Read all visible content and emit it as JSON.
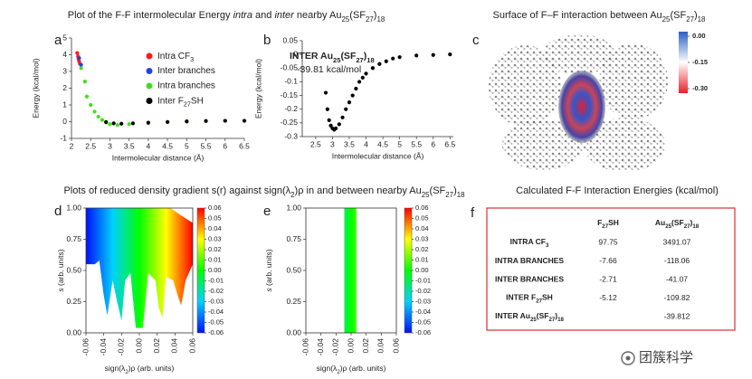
{
  "headings": {
    "energy": [
      "Plot of the F-F intermolecular Energy ",
      {
        "i": "intra"
      },
      " and ",
      {
        "i": "inter"
      },
      " nearby Au",
      {
        "sub": "25"
      },
      "(SF",
      {
        "sub": "27"
      },
      ")",
      {
        "sub": "18"
      }
    ],
    "surface": [
      "Surface of F–F interaction between Au",
      {
        "sub": "25"
      },
      "(SF",
      {
        "sub": "27"
      },
      ")",
      {
        "sub": "18"
      }
    ],
    "rdg": [
      "Plots of reduced density gradient s(r) against sign(λ",
      {
        "sub": "2"
      },
      ")ρ in and between nearby Au",
      {
        "sub": "25"
      },
      "(SF",
      {
        "sub": "27"
      },
      ")",
      {
        "sub": "18"
      }
    ],
    "table": "Calculated F-F Interaction Energies (kcal/mol)"
  },
  "panel_labels": [
    "a",
    "b",
    "c",
    "d",
    "e",
    "f"
  ],
  "chart_data": [
    {
      "type": "scatter",
      "xlabel": "Intermolecular distance (Å)",
      "ylabel": "Energy (kcal/mol)",
      "xlim": [
        2,
        6.5
      ],
      "xticks": [
        2,
        2.5,
        3,
        3.5,
        4,
        4.5,
        5,
        5.5,
        6,
        6.5
      ],
      "ylim": [
        -1,
        5
      ],
      "yticks": [
        -1,
        0,
        1,
        2,
        3,
        4,
        5
      ],
      "legend": "upper right",
      "series": [
        {
          "name": [
            "Intra CF",
            {
              "sub": "3"
            }
          ],
          "color": "#ff1a1a",
          "x": [
            2.15,
            2.17,
            2.18,
            2.2,
            2.22
          ],
          "y": [
            4.1,
            3.9,
            3.75,
            3.6,
            3.45
          ]
        },
        {
          "name": "Inter branches",
          "color": "#2244dd",
          "x": [
            2.2,
            2.25
          ],
          "y": [
            3.8,
            3.4
          ]
        },
        {
          "name": "Intra branches",
          "color": "#44dd22",
          "x": [
            2.25,
            2.35,
            2.4,
            2.5,
            2.6,
            2.7,
            2.8,
            2.9,
            3.0,
            3.2,
            3.5,
            4,
            4.5,
            5,
            5.5,
            6,
            6.5
          ],
          "y": [
            3.2,
            2.4,
            1.5,
            1.0,
            0.6,
            0.3,
            0.1,
            -0.05,
            -0.15,
            -0.2,
            -0.15,
            -0.08,
            -0.03,
            0,
            0.03,
            0.05,
            0.05
          ]
        },
        {
          "name": [
            "Inter F",
            {
              "sub": "27"
            },
            "SH"
          ],
          "color": "#000000",
          "x": [
            2.9,
            3.1,
            3.3,
            3.6,
            4,
            4.5,
            5,
            5.5,
            6,
            6.5
          ],
          "y": [
            -0.02,
            -0.1,
            -0.12,
            -0.1,
            -0.06,
            -0.02,
            0.02,
            0.04,
            0.05,
            0.05
          ]
        }
      ]
    },
    {
      "type": "scatter",
      "xlabel": "Intermolecular distance (Å)",
      "ylabel": "Energy (kcal/mol)",
      "xlim": [
        2.1,
        6.6
      ],
      "xticks": [
        2.5,
        3,
        3.5,
        4,
        4.5,
        5,
        5.5,
        6,
        6.5
      ],
      "ylim": [
        -0.3,
        0.05
      ],
      "yticks": [
        0.05,
        0,
        -0.05,
        -0.1,
        -0.15,
        -0.2,
        -0.25,
        -0.3
      ],
      "annotation": [
        [
          "INTER Au",
          {
            "sub": "25"
          },
          "(SF",
          {
            "sub": "27"
          },
          ")",
          {
            "sub": "18"
          }
        ],
        "-39.81 kcal/mol"
      ],
      "series": [
        {
          "color": "#000000",
          "x": [
            2.8,
            2.85,
            2.9,
            2.95,
            3.0,
            3.05,
            3.1,
            3.2,
            3.3,
            3.4,
            3.5,
            3.6,
            3.7,
            3.8,
            3.9,
            4.0,
            4.2,
            4.4,
            4.6,
            4.8,
            5.0,
            5.5,
            6.0,
            6.5
          ],
          "y": [
            -0.14,
            -0.2,
            -0.24,
            -0.26,
            -0.27,
            -0.275,
            -0.27,
            -0.255,
            -0.23,
            -0.2,
            -0.175,
            -0.15,
            -0.125,
            -0.1,
            -0.085,
            -0.07,
            -0.05,
            -0.035,
            -0.025,
            -0.015,
            -0.01,
            -0.004,
            -0.002,
            0
          ]
        }
      ]
    },
    {
      "type": "density",
      "xlabel": [
        "sign(λ",
        {
          "sub": "2"
        },
        ")ρ (arb. units)"
      ],
      "ylabel": [
        {
          "i": "s"
        },
        " (arb. units)"
      ],
      "xlim": [
        -0.06,
        0.06
      ],
      "xticks": [
        -0.06,
        -0.04,
        -0.02,
        {
          "value": 0,
          "label": "0.00"
        },
        0.02,
        0.04,
        0.06
      ],
      "ylim": [
        0,
        1
      ],
      "yticks": [
        {
          "value": 0,
          "label": "0.00"
        },
        0.25,
        {
          "value": 0.5,
          "label": "0.50"
        },
        0.75,
        {
          "value": 1,
          "label": "1.00"
        }
      ],
      "colorbar": {
        "lim": [
          -0.06,
          0.06
        ],
        "colors": [
          "#0010ff",
          "#00d0ff",
          "#00ff00",
          "#ffff00",
          "#ff0000"
        ],
        "ticks": [
          0.06,
          0.05,
          0.04,
          0.03,
          0.02,
          0.01,
          {
            "value": 0,
            "label": "0.00"
          },
          -0.01,
          -0.02,
          -0.03,
          -0.04,
          -0.05,
          -0.06
        ]
      },
      "regions": [
        {
          "x": [
            -0.06,
            -0.06,
            0.035,
            0.045,
            0.06,
            0.06,
            0.052,
            0.047,
            0.043,
            0.038,
            0.03,
            0.026,
            0.022,
            0.018,
            0.01,
            0.004,
            -0.004,
            -0.01,
            -0.016,
            -0.02,
            -0.025,
            -0.03,
            -0.036,
            -0.04,
            -0.045,
            -0.05,
            -0.06
          ],
          "y": [
            0.55,
            1.0,
            1.0,
            0.95,
            0.88,
            0.55,
            0.42,
            0.22,
            0.3,
            0.42,
            0.45,
            0.12,
            0.2,
            0.42,
            0.48,
            0.04,
            0.04,
            0.48,
            0.42,
            0.1,
            0.25,
            0.42,
            0.14,
            0.3,
            0.58,
            0.55,
            0.55
          ]
        }
      ]
    },
    {
      "type": "density",
      "xlabel": [
        "sign(λ",
        {
          "sub": "2"
        },
        ")ρ (arb. units)"
      ],
      "ylabel": [
        {
          "i": "s"
        },
        " (arb. units)"
      ],
      "xlim": [
        -0.06,
        0.06
      ],
      "xticks": [
        -0.06,
        -0.04,
        -0.02,
        {
          "value": 0,
          "label": "0.00"
        },
        0.02,
        0.04,
        0.06
      ],
      "ylim": [
        0,
        1
      ],
      "yticks": [
        {
          "value": 0,
          "label": "0.00"
        },
        0.25,
        {
          "value": 0.5,
          "label": "0.50"
        },
        0.75,
        {
          "value": 1,
          "label": "1.00"
        }
      ],
      "colorbar": {
        "lim": [
          -0.06,
          0.06
        ],
        "colors": [
          "#0010ff",
          "#00d0ff",
          "#00ff00",
          "#ffff00",
          "#ff0000"
        ],
        "ticks": [
          0.06,
          0.05,
          0.04,
          0.03,
          0.02,
          0.01,
          {
            "value": 0,
            "label": "0.00"
          },
          -0.01,
          -0.02,
          -0.03,
          -0.04,
          -0.05,
          -0.06
        ]
      },
      "regions": [
        {
          "x": [
            -0.009,
            0.007,
            0.007,
            -0.009
          ],
          "y": [
            1,
            1,
            0,
            0
          ]
        }
      ]
    }
  ],
  "surface": {
    "colorbar": {
      "lim": [
        -0.3,
        0
      ],
      "colors": [
        "#e8202a",
        "#ffffff",
        "#2a5fc0"
      ],
      "ticks": [
        {
          "value": 0,
          "label": "0.00"
        },
        -0.15,
        {
          "value": -0.3,
          "label": "-0.30"
        }
      ]
    }
  },
  "table": {
    "header": [
      [
        "F",
        {
          "sub": "27"
        },
        "SH"
      ],
      [
        "Au",
        {
          "sub": "25"
        },
        "(SF",
        {
          "sub": "27"
        },
        ")",
        {
          "sub": "18"
        }
      ]
    ],
    "rows": [
      [
        [
          "INTRA CF",
          {
            "sub": "3"
          }
        ],
        "97.75",
        "3491.07"
      ],
      [
        "INTRA BRANCHES",
        "-7.66",
        "-118.06"
      ],
      [
        "INTER BRANCHES",
        "-2.71",
        "-41.07"
      ],
      [
        [
          "INTER F",
          {
            "sub": "27"
          },
          "SH"
        ],
        "-5.12",
        "-109.82"
      ],
      [
        [
          "INTER Au",
          {
            "sub": "25"
          },
          "(SF",
          {
            "sub": "27"
          },
          ")",
          {
            "sub": "18"
          }
        ],
        "-39.812"
      ]
    ]
  },
  "watermark": "团簇科学"
}
